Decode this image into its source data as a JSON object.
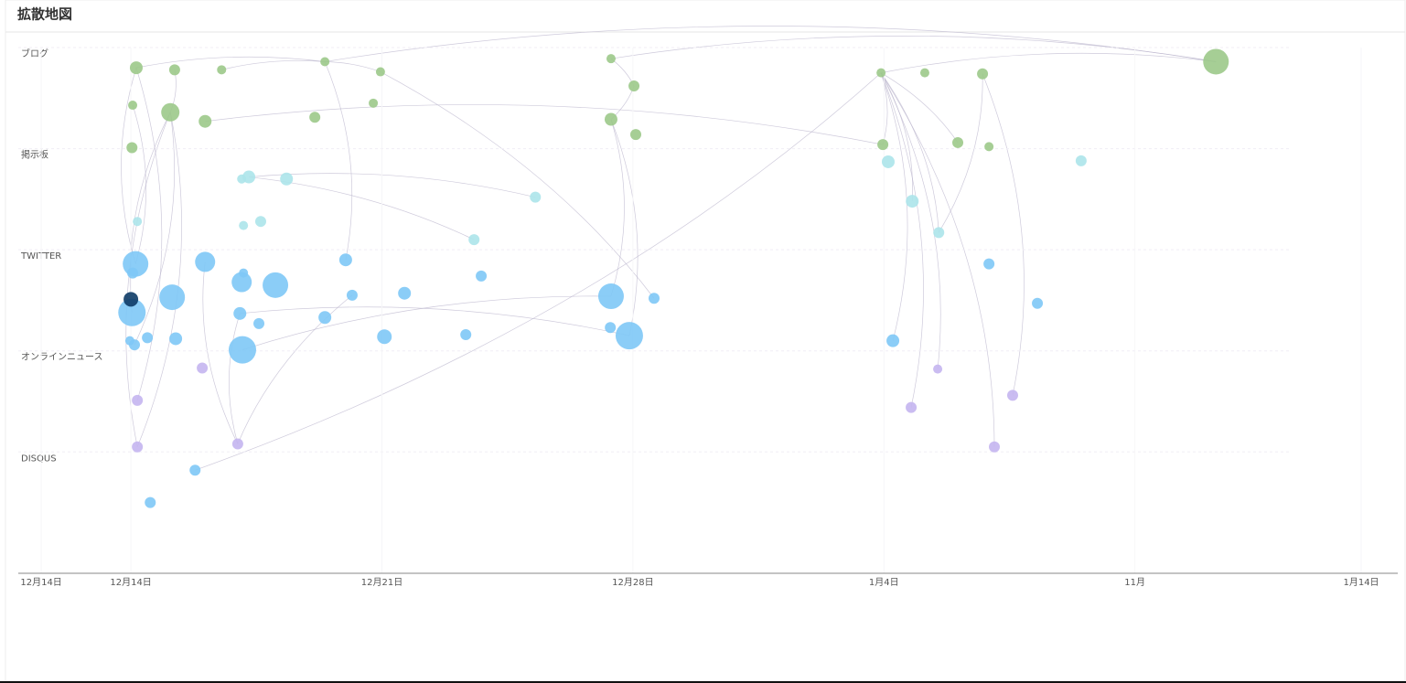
{
  "chart_data": {
    "type": "scatter",
    "title": "拡散地図",
    "xlim": [
      -3.14,
      35.33
    ],
    "ylim": [
      0,
      5.2
    ],
    "xticks": [
      {
        "value": -2.5,
        "label": "12月14日"
      },
      {
        "value": 0,
        "label": "12月14日"
      },
      {
        "value": 7,
        "label": "12月21日"
      },
      {
        "value": 14,
        "label": "12月28日"
      },
      {
        "value": 21,
        "label": "1月4日"
      },
      {
        "value": 28,
        "label": "11月"
      },
      {
        "value": 34.31,
        "label": "1月14日"
      }
    ],
    "yticks": [
      {
        "value": 0,
        "label": "ブログ"
      },
      {
        "value": 1,
        "label": "掲示板"
      },
      {
        "value": 2,
        "label": "TWITTER"
      },
      {
        "value": 3,
        "label": "オンラインニュース"
      },
      {
        "value": 4,
        "label": "DISQUS"
      }
    ],
    "grid": true,
    "series": [
      {
        "color": "#9cc98a",
        "x": [
          0.15,
          1.22,
          2.53,
          5.41,
          6.96,
          13.39,
          20.92,
          22.14,
          23.75,
          30.26,
          0.05,
          1.1,
          2.07,
          5.13,
          6.76,
          14.03,
          13.39,
          14.08,
          0.03,
          20.97,
          23.06,
          23.93
        ],
        "y": [
          0.2,
          0.22,
          0.22,
          0.14,
          0.24,
          0.11,
          0.25,
          0.25,
          0.26,
          0.14,
          0.57,
          0.64,
          0.73,
          0.69,
          0.55,
          0.38,
          0.71,
          0.86,
          0.99,
          0.96,
          0.94,
          0.98
        ],
        "sizes": [
          7,
          6,
          5,
          5,
          5,
          5,
          5,
          5,
          6,
          14,
          5,
          10,
          7,
          6,
          5,
          6,
          7,
          6,
          6,
          6,
          6,
          5
        ]
      },
      {
        "color": "#ace4ea",
        "x": [
          3.09,
          3.29,
          4.34,
          11.28,
          0.18,
          3.14,
          3.62,
          9.57,
          21.12,
          26.5,
          21.79,
          22.53
        ],
        "y": [
          1.3,
          1.28,
          1.3,
          1.48,
          1.72,
          1.76,
          1.72,
          1.9,
          1.13,
          1.12,
          1.52,
          1.83
        ],
        "sizes": [
          5,
          7,
          7,
          6,
          5,
          5,
          6,
          6,
          7,
          6,
          7,
          6
        ]
      },
      {
        "color": "#7ec8f6",
        "x": [
          0.13,
          0.05,
          2.07,
          1.15,
          0.03,
          3.09,
          3.14,
          4.03,
          3.04,
          3.57,
          5.41,
          5.99,
          6.17,
          7.63,
          9.77,
          7.07,
          9.34,
          13.39,
          13.9,
          14.59,
          13.37,
          3.11,
          1.25,
          0.46,
          0.1,
          -0.03,
          23.93,
          25.28,
          21.25,
          1.79,
          0.54
        ],
        "y": [
          2.14,
          2.23,
          2.12,
          2.47,
          2.62,
          2.32,
          2.23,
          2.35,
          2.63,
          2.73,
          2.67,
          2.1,
          2.45,
          2.43,
          2.26,
          2.86,
          2.84,
          2.46,
          2.85,
          2.48,
          2.77,
          2.99,
          2.88,
          2.87,
          2.94,
          2.9,
          2.14,
          2.53,
          2.9,
          4.18,
          4.5
        ],
        "sizes": [
          14,
          6,
          11,
          14,
          15,
          11,
          5,
          14,
          7,
          6,
          7,
          7,
          6,
          7,
          6,
          8,
          6,
          14,
          15,
          6,
          6,
          15,
          7,
          6,
          6,
          5,
          6,
          6,
          7,
          6,
          6
        ]
      },
      {
        "color": "#0d3b66",
        "x": [
          0.0
        ],
        "y": [
          2.49
        ],
        "sizes": [
          8
        ]
      },
      {
        "color": "#c4b5f0",
        "x": [
          1.99,
          0.18,
          0.18,
          2.98,
          22.5,
          24.59,
          21.76,
          24.08
        ],
        "y": [
          3.17,
          3.49,
          3.95,
          3.92,
          3.18,
          3.44,
          3.56,
          3.95
        ],
        "sizes": [
          6,
          6,
          6,
          6,
          5,
          6,
          6,
          6
        ]
      }
    ],
    "links": [
      [
        0,
        0,
        0,
        3
      ],
      [
        0,
        3,
        0,
        9
      ],
      [
        0,
        5,
        0,
        9
      ],
      [
        0,
        6,
        0,
        9
      ],
      [
        0,
        2,
        0,
        3
      ],
      [
        0,
        6,
        0,
        19
      ],
      [
        0,
        6,
        0,
        20
      ],
      [
        0,
        6,
        2,
        28
      ],
      [
        0,
        6,
        4,
        4
      ],
      [
        0,
        6,
        4,
        6
      ],
      [
        0,
        6,
        4,
        7
      ],
      [
        0,
        6,
        2,
        29
      ],
      [
        0,
        6,
        1,
        11
      ],
      [
        0,
        6,
        1,
        10
      ],
      [
        0,
        16,
        2,
        17
      ],
      [
        0,
        16,
        2,
        18
      ],
      [
        0,
        15,
        0,
        16
      ],
      [
        0,
        12,
        0,
        19
      ],
      [
        0,
        5,
        0,
        15
      ],
      [
        0,
        3,
        2,
        11
      ],
      [
        0,
        3,
        0,
        4
      ],
      [
        0,
        4,
        2,
        19
      ],
      [
        1,
        1,
        1,
        3
      ],
      [
        1,
        1,
        1,
        7
      ],
      [
        2,
        0,
        0,
        0
      ],
      [
        2,
        4,
        0,
        11
      ],
      [
        4,
        3,
        2,
        2
      ],
      [
        4,
        3,
        2,
        8
      ],
      [
        4,
        3,
        2,
        12
      ],
      [
        4,
        2,
        0,
        11
      ],
      [
        2,
        21,
        2,
        17
      ],
      [
        2,
        8,
        2,
        18
      ],
      [
        0,
        11,
        4,
        2
      ],
      [
        0,
        11,
        2,
        24
      ],
      [
        0,
        0,
        4,
        1
      ],
      [
        0,
        10,
        2,
        0
      ],
      [
        0,
        8,
        4,
        5
      ],
      [
        0,
        8,
        1,
        11
      ],
      [
        0,
        1,
        0,
        11
      ]
    ]
  }
}
